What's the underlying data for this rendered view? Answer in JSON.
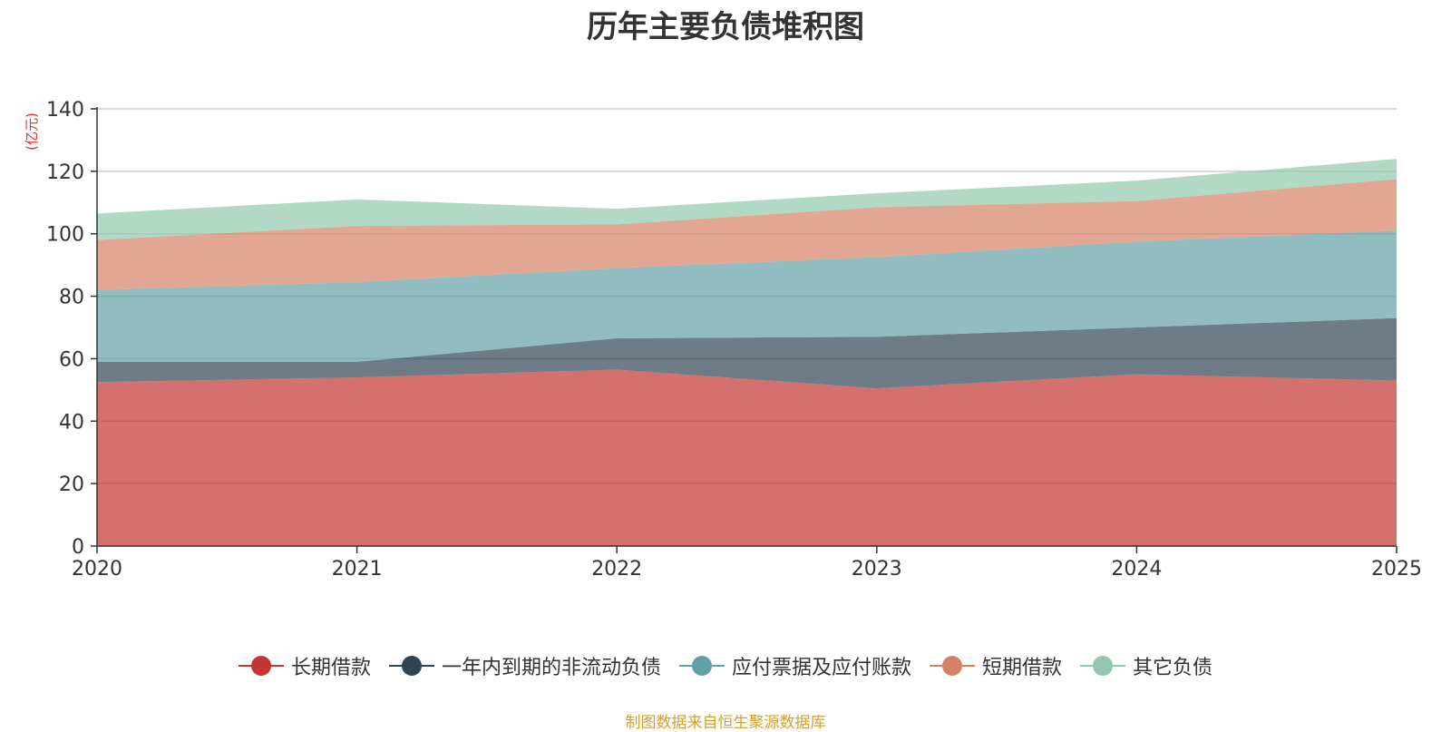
{
  "title": "历年主要负债堆积图",
  "source_note": "制图数据来自恒生聚源数据库",
  "colors": {
    "source_text": "#d4a02a",
    "unit_text": "#e03030",
    "axis": "#333333",
    "grid": "#cccccc"
  },
  "chart_data": {
    "type": "area",
    "stacked": true,
    "title": "历年主要负债堆积图",
    "y_unit": "(亿元)",
    "x": [
      "2020",
      "2021",
      "2022",
      "2023",
      "2024",
      "2025"
    ],
    "ylim": [
      0,
      140
    ],
    "yticks": [
      0,
      20,
      40,
      60,
      80,
      100,
      120,
      140
    ],
    "grid": true,
    "legend_position": "bottom",
    "series": [
      {
        "name": "长期借款",
        "color": "#c23531",
        "values": [
          52.5,
          54.0,
          56.5,
          50.5,
          55.0,
          53.0
        ]
      },
      {
        "name": "一年内到期的非流动负债",
        "color": "#2f4554",
        "values": [
          6.5,
          5.0,
          10.0,
          16.5,
          15.0,
          20.0
        ]
      },
      {
        "name": "应付票据及应付账款",
        "color": "#61a0a8",
        "values": [
          23.0,
          25.5,
          22.5,
          25.5,
          27.5,
          28.0
        ]
      },
      {
        "name": "短期借款",
        "color": "#d48265",
        "values": [
          16.0,
          18.0,
          14.0,
          16.0,
          13.0,
          16.5
        ]
      },
      {
        "name": "其它负债",
        "color": "#91c7ae",
        "values": [
          8.5,
          8.5,
          5.0,
          4.5,
          6.5,
          6.5
        ]
      }
    ]
  }
}
